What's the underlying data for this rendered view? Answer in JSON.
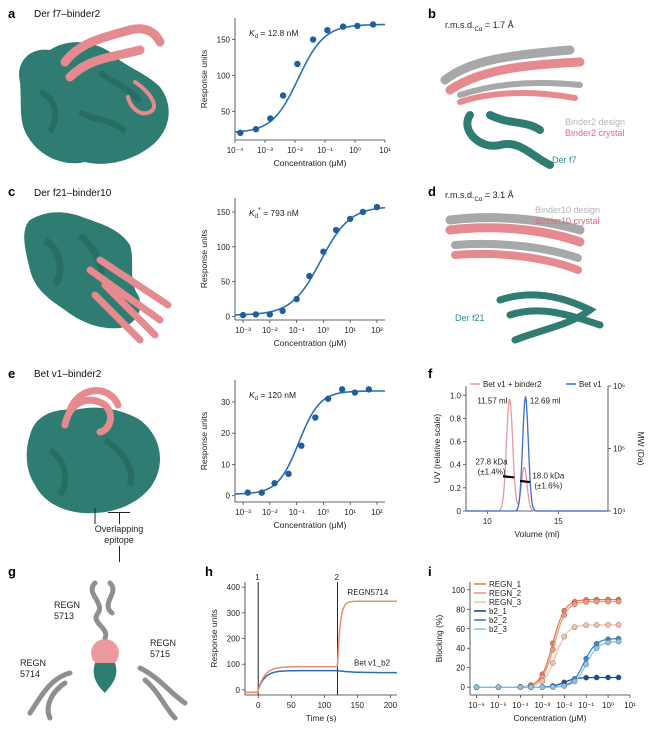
{
  "colors": {
    "teal": "#2f7d72",
    "teal_dark": "#1f5e56",
    "pink": "#e58a8f",
    "grey": "#a8a8a8",
    "curve_blue": "#2a6fb0",
    "dot_blue": "#1f5fa0",
    "orange": "#f08c6a",
    "sec_pink": "#e39aa6",
    "sec_blue": "#3b6fc4"
  },
  "panels": {
    "a": {
      "label": "a",
      "title": "Der f7–binder2"
    },
    "b": {
      "label": "b",
      "rmsd": "r.m.s.d.",
      "rmsd_sub": "Cα",
      "rmsd_val": " = 1.7 Å",
      "legend_design": "Binder2 design",
      "legend_crystal": "Binder2 crystal",
      "target": "Der f7"
    },
    "c": {
      "label": "c",
      "title": "Der f21–binder10"
    },
    "d": {
      "label": "d",
      "rmsd": "r.m.s.d.",
      "rmsd_sub": "Cα",
      "rmsd_val": " = 3.1 Å",
      "legend_design": "Binder10 design",
      "legend_crystal": "Binder10 crystal",
      "target": "Der f21"
    },
    "e": {
      "label": "e",
      "title": "Bet v1–binder2"
    },
    "f": {
      "label": "f"
    },
    "g": {
      "label": "g",
      "epitope": "Overlapping\nepitope",
      "ab1": "REGN\n5713",
      "ab2": "REGN\n5714",
      "ab3": "REGN\n5715"
    },
    "h": {
      "label": "h"
    },
    "i": {
      "label": "i"
    }
  },
  "chart_data": [
    {
      "id": "a",
      "type": "scatter",
      "annotation": "K",
      "annotation_sub": "d",
      "annotation_val": " = 12.8 nM",
      "xlabel": "Concentration (μM)",
      "ylabel": "Response units",
      "xscale": "log",
      "xlim": [
        0.0001,
        10
      ],
      "ylim": [
        10,
        180
      ],
      "x_ticks": [
        "10⁻⁴",
        "10⁻³",
        "10⁻²",
        "10⁻¹",
        "10⁰",
        "10¹"
      ],
      "y_ticks": [
        50,
        100,
        150
      ],
      "points": {
        "x": [
          0.00015,
          0.0005,
          0.0015,
          0.004,
          0.012,
          0.04,
          0.12,
          0.4,
          1.2,
          4
        ],
        "y": [
          20,
          25,
          40,
          72,
          116,
          150,
          163,
          168,
          169,
          171
        ]
      },
      "fit": {
        "bottom": 20,
        "top": 171,
        "ec50": 0.0128,
        "hill": 1.0
      }
    },
    {
      "id": "c",
      "type": "scatter",
      "annotation": "K",
      "annotation_sub": "d",
      "annotation_sup": "*",
      "annotation_val": " = 793 nM",
      "xlabel": "Concentration (μM)",
      "ylabel": "Response units",
      "xscale": "log",
      "xlim": [
        0.0005,
        200
      ],
      "ylim": [
        -5,
        170
      ],
      "x_ticks": [
        "10⁻³",
        "10⁻²",
        "10⁻¹",
        "10⁰",
        "10¹",
        "10²"
      ],
      "y_ticks": [
        0,
        50,
        100,
        150
      ],
      "points": {
        "x": [
          0.001,
          0.003,
          0.01,
          0.03,
          0.1,
          0.3,
          1,
          3,
          10,
          30,
          100
        ],
        "y": [
          2,
          3,
          3,
          8,
          25,
          58,
          93,
          124,
          140,
          150,
          157
        ]
      },
      "fit": {
        "bottom": 2,
        "top": 158,
        "ec50": 0.793,
        "hill": 0.8
      }
    },
    {
      "id": "e",
      "type": "scatter",
      "annotation": "K",
      "annotation_sub": "d",
      "annotation_val": " = 120 nM",
      "xlabel": "Concentration (μM)",
      "ylabel": "Response units",
      "xscale": "log",
      "xlim": [
        0.0005,
        200
      ],
      "ylim": [
        -2,
        37
      ],
      "x_ticks": [
        "10⁻³",
        "10⁻²",
        "10⁻¹",
        "10⁰",
        "10¹",
        "10²"
      ],
      "y_ticks": [
        0,
        10,
        20,
        30
      ],
      "points": {
        "x": [
          0.0015,
          0.005,
          0.015,
          0.05,
          0.15,
          0.5,
          1.5,
          5,
          15,
          50
        ],
        "y": [
          1,
          1,
          4,
          7,
          16,
          25,
          31,
          34,
          33,
          34
        ]
      },
      "fit": {
        "bottom": 0.5,
        "top": 33.5,
        "ec50": 0.12,
        "hill": 1.1
      }
    },
    {
      "id": "f",
      "type": "line",
      "xlabel": "Volume (ml)",
      "ylabel": "UV (relative scale)",
      "y2label": "MW (Da)",
      "xlim": [
        8.5,
        18.5
      ],
      "ylim": [
        0,
        1.08
      ],
      "x_ticks": [
        10,
        15
      ],
      "y_ticks": [
        "0",
        "0.2",
        "0.4",
        "0.6",
        "0.8",
        "1.0"
      ],
      "y2_ticks": [
        "10⁴",
        "10⁵",
        "10⁶"
      ],
      "series": [
        {
          "name": "Bet v1 + binder2",
          "peak_label": "11.57 ml",
          "mw_label": "27.8 kDa\n(±1.4%)"
        },
        {
          "name": "Bet v1",
          "peak_label": "12.69 ml",
          "mw_label": "18.0 kDa\n(±1.6%)"
        }
      ]
    },
    {
      "id": "h",
      "type": "line",
      "xlabel": "Time (s)",
      "ylabel": "Response units",
      "xlim": [
        -20,
        210
      ],
      "ylim": [
        -20,
        420
      ],
      "x_ticks": [
        0,
        50,
        100,
        150,
        200
      ],
      "y_ticks": [
        0,
        100,
        200,
        300,
        400
      ],
      "markers": [
        {
          "x": 0,
          "label": "1"
        },
        {
          "x": 120,
          "label": "2"
        }
      ],
      "series": [
        {
          "name": "REGN5714",
          "color": "orange"
        },
        {
          "name": "Bet v1_b2",
          "color": "blue"
        }
      ]
    },
    {
      "id": "i",
      "type": "scatter",
      "xlabel": "Concentration (μM)",
      "ylabel": "Blocking (%)",
      "xscale": "log",
      "xlim": [
        5e-07,
        10
      ],
      "ylim": [
        -8,
        108
      ],
      "x_ticks": [
        "10⁻⁶",
        "10⁻⁵",
        "10⁻⁴",
        "10⁻³",
        "10⁻²",
        "10⁻¹",
        "10⁰",
        "10¹"
      ],
      "y_ticks": [
        0,
        20,
        40,
        60,
        80,
        100
      ],
      "series": [
        {
          "name": "REGN_1",
          "color": "#f07a55",
          "top": 90,
          "ec50": 0.003
        },
        {
          "name": "REGN_2",
          "color": "#f29b7c",
          "top": 88,
          "ec50": 0.0035
        },
        {
          "name": "REGN_3",
          "color": "#f7c2a8",
          "top": 64,
          "ec50": 0.004
        },
        {
          "name": "b2_1",
          "color": "#1b4f8a",
          "top": 10,
          "ec50": 0.01
        },
        {
          "name": "b2_2",
          "color": "#3a86c8",
          "top": 50,
          "ec50": 0.08
        },
        {
          "name": "b2_3",
          "color": "#8cc3e6",
          "top": 47,
          "ec50": 0.1
        }
      ]
    }
  ]
}
